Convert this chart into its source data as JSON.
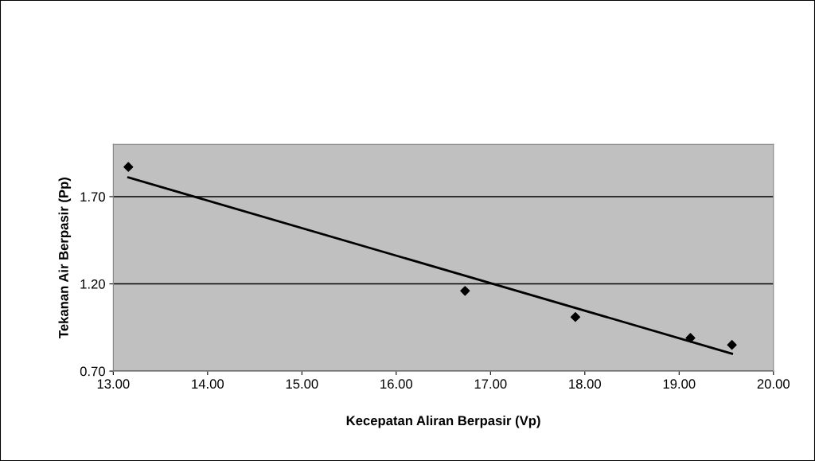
{
  "chart_data": {
    "type": "scatter",
    "xlabel": "Kecepatan Aliran Berpasir (Vp)",
    "ylabel": "Tekanan Air Berpasir (Pp)",
    "xlim": [
      13.0,
      20.0
    ],
    "xticks": [
      {
        "value": 13,
        "label": "13.00"
      },
      {
        "value": 14,
        "label": "14.00"
      },
      {
        "value": 15,
        "label": "15.00"
      },
      {
        "value": 16,
        "label": "16.00"
      },
      {
        "value": 17,
        "label": "17.00"
      },
      {
        "value": 18,
        "label": "18.00"
      },
      {
        "value": 19,
        "label": "19.00"
      },
      {
        "value": 20,
        "label": "20.00"
      }
    ],
    "ylim": [
      0.7,
      2.0
    ],
    "yticks": [
      {
        "value": 0.7,
        "label": "0.70"
      },
      {
        "value": 1.2,
        "label": "1.20"
      },
      {
        "value": 1.7,
        "label": "1.70"
      }
    ],
    "grid": "y",
    "legend": false,
    "series": [
      {
        "color": "#000000",
        "marker": "diamond",
        "x": [
          13.16,
          16.73,
          17.9,
          19.12,
          19.56
        ],
        "values": [
          1.87,
          1.16,
          1.01,
          0.89,
          0.85
        ]
      },
      {
        "type": "line",
        "color": "#000000",
        "marker": "none",
        "line_style": "solid",
        "x": [
          13.16,
          19.56
        ],
        "values": [
          1.81,
          0.8
        ]
      }
    ]
  }
}
